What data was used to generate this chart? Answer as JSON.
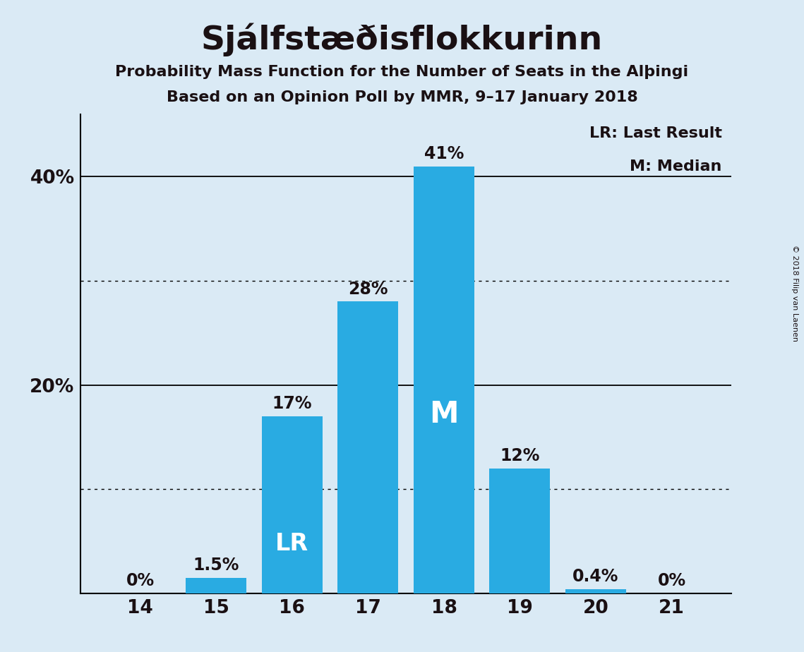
{
  "title": "Sjálfstæðisflokkurinn",
  "subtitle1": "Probability Mass Function for the Number of Seats in the Alþingi",
  "subtitle2": "Based on an Opinion Poll by MMR, 9–17 January 2018",
  "copyright": "© 2018 Filip van Laenen",
  "categories": [
    14,
    15,
    16,
    17,
    18,
    19,
    20,
    21
  ],
  "values": [
    0.0,
    1.5,
    17.0,
    28.0,
    41.0,
    12.0,
    0.4,
    0.0
  ],
  "bar_color": "#29ABE2",
  "bar_labels": [
    "0%",
    "1.5%",
    "17%",
    "28%",
    "41%",
    "12%",
    "0.4%",
    "0%"
  ],
  "bar_label_outside": [
    true,
    true,
    true,
    true,
    true,
    true,
    true,
    true
  ],
  "background_color": "#DAEAF5",
  "text_color": "#1a1013",
  "ytick_positions": [
    20,
    40
  ],
  "ytick_labels": [
    "20%",
    "40%"
  ],
  "solid_grid": [
    20,
    40
  ],
  "dotted_grid": [
    10,
    30
  ],
  "ylim": [
    0,
    46
  ],
  "last_result_seat": 16,
  "median_seat": 18,
  "legend_lr": "LR: Last Result",
  "legend_m": "M: Median",
  "label_lr": "LR",
  "label_m": "M",
  "title_fontsize": 34,
  "subtitle_fontsize": 16,
  "bar_label_fontsize": 17,
  "axis_fontsize": 19,
  "legend_fontsize": 16,
  "inner_label_fontsize": 24
}
